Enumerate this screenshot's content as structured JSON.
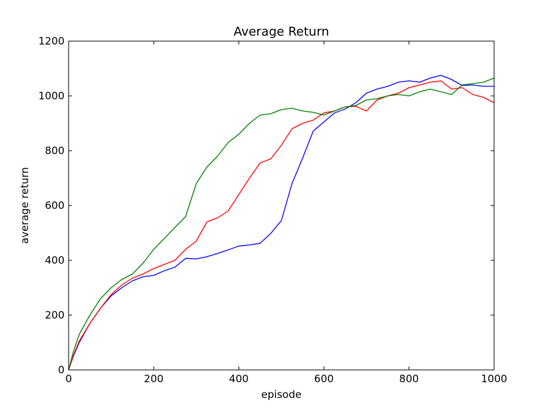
{
  "chart_data": {
    "type": "line",
    "title": "Average Return",
    "xlabel": "episode",
    "ylabel": "average return",
    "xlim": [
      0,
      1000
    ],
    "ylim": [
      0,
      1200
    ],
    "xticks": [
      0,
      200,
      400,
      600,
      800,
      1000
    ],
    "yticks": [
      0,
      200,
      400,
      600,
      800,
      1000,
      1200
    ],
    "xtick_labels": [
      "0",
      "200",
      "400",
      "600",
      "800",
      "1000"
    ],
    "ytick_labels": [
      "0",
      "200",
      "400",
      "600",
      "800",
      "1000",
      "1200"
    ],
    "grid": false,
    "legend": "none",
    "x": [
      0,
      10,
      25,
      50,
      75,
      100,
      125,
      150,
      175,
      200,
      225,
      250,
      275,
      300,
      325,
      350,
      375,
      400,
      425,
      450,
      475,
      500,
      525,
      550,
      575,
      600,
      625,
      650,
      675,
      700,
      725,
      750,
      775,
      800,
      825,
      850,
      875,
      900,
      925,
      950,
      975,
      1000
    ],
    "series": [
      {
        "color": "#0000ff",
        "values": [
          0,
          45,
          100,
          170,
          225,
          270,
          300,
          325,
          340,
          345,
          362,
          375,
          407,
          405,
          413,
          425,
          438,
          452,
          456,
          462,
          498,
          545,
          680,
          773,
          872,
          905,
          938,
          952,
          975,
          1010,
          1025,
          1035,
          1050,
          1055,
          1050,
          1065,
          1075,
          1060,
          1038,
          1040,
          1035,
          1035
        ]
      },
      {
        "color": "#ff0000",
        "values": [
          0,
          48,
          105,
          170,
          225,
          275,
          310,
          335,
          350,
          370,
          385,
          400,
          440,
          470,
          540,
          555,
          580,
          640,
          700,
          755,
          770,
          820,
          880,
          900,
          912,
          938,
          945,
          960,
          962,
          945,
          985,
          1000,
          1010,
          1030,
          1040,
          1050,
          1055,
          1025,
          1030,
          1005,
          995,
          975
        ]
      },
      {
        "color": "#008000",
        "values": [
          0,
          60,
          130,
          200,
          260,
          300,
          330,
          350,
          390,
          440,
          480,
          520,
          560,
          680,
          740,
          780,
          830,
          860,
          900,
          930,
          935,
          950,
          955,
          945,
          940,
          930,
          945,
          960,
          965,
          985,
          990,
          1000,
          1005,
          1000,
          1015,
          1025,
          1015,
          1005,
          1040,
          1045,
          1050,
          1065
        ]
      }
    ]
  }
}
